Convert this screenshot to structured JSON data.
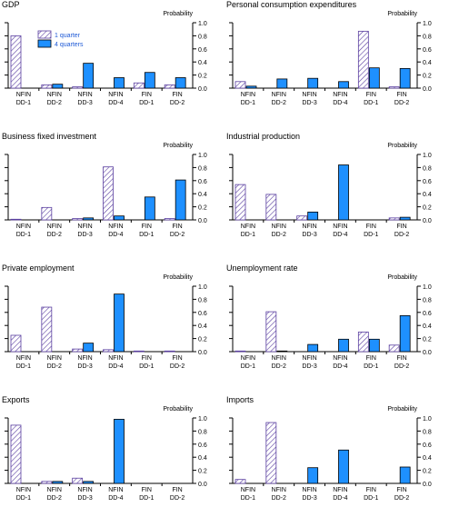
{
  "y_axis_label": "Probability",
  "y_ticks": [
    "0.0",
    "0.2",
    "0.4",
    "0.6",
    "0.8",
    "1.0"
  ],
  "legend": {
    "q1_label": "1 quarter",
    "q4_label": "4 quarters"
  },
  "colors": {
    "q4_fill": "#1e90ff",
    "q1_hatch": "#5a3fa0",
    "axis": "#000000",
    "legend_text": "#1e5ad6"
  },
  "chart_data": [
    {
      "type": "bar",
      "title": "GDP",
      "show_legend": true,
      "categories": [
        [
          "NFIN",
          "DD-1"
        ],
        [
          "NFIN",
          "DD-2"
        ],
        [
          "NFIN",
          "DD-3"
        ],
        [
          "NFIN",
          "DD-4"
        ],
        [
          "FIN",
          "DD-1"
        ],
        [
          "FIN",
          "DD-2"
        ]
      ],
      "series": [
        {
          "name": "1 quarter",
          "values": [
            0.8,
            0.05,
            0.02,
            0.0,
            0.08,
            0.05
          ]
        },
        {
          "name": "4 quarters",
          "values": [
            0.0,
            0.06,
            0.38,
            0.16,
            0.24,
            0.16
          ]
        }
      ],
      "ylim": [
        0,
        1.0
      ]
    },
    {
      "type": "bar",
      "title": "Personal consumption expenditures",
      "show_legend": false,
      "categories": [
        [
          "NFIN",
          "DD-1"
        ],
        [
          "NFIN",
          "DD-2"
        ],
        [
          "NFIN",
          "DD-3"
        ],
        [
          "NFIN",
          "DD-4"
        ],
        [
          "FIN",
          "DD-1"
        ],
        [
          "FIN",
          "DD-2"
        ]
      ],
      "series": [
        {
          "name": "1 quarter",
          "values": [
            0.1,
            0.0,
            0.0,
            0.0,
            0.87,
            0.02
          ]
        },
        {
          "name": "4 quarters",
          "values": [
            0.03,
            0.14,
            0.15,
            0.1,
            0.31,
            0.3
          ]
        }
      ],
      "ylim": [
        0,
        1.0
      ]
    },
    {
      "type": "bar",
      "title": "Business fixed investment",
      "show_legend": false,
      "categories": [
        [
          "NFIN",
          "DD-1"
        ],
        [
          "NFIN",
          "DD-2"
        ],
        [
          "NFIN",
          "DD-3"
        ],
        [
          "NFIN",
          "DD-4"
        ],
        [
          "FIN",
          "DD-1"
        ],
        [
          "FIN",
          "DD-2"
        ]
      ],
      "series": [
        {
          "name": "1 quarter",
          "values": [
            0.01,
            0.19,
            0.02,
            0.81,
            0.0,
            0.02
          ]
        },
        {
          "name": "4 quarters",
          "values": [
            0.0,
            0.0,
            0.03,
            0.06,
            0.35,
            0.61
          ]
        }
      ],
      "ylim": [
        0,
        1.0
      ]
    },
    {
      "type": "bar",
      "title": "Industrial production",
      "show_legend": false,
      "categories": [
        [
          "NFIN",
          "DD-1"
        ],
        [
          "NFIN",
          "DD-2"
        ],
        [
          "NFIN",
          "DD-3"
        ],
        [
          "NFIN",
          "DD-4"
        ],
        [
          "FIN",
          "DD-1"
        ],
        [
          "FIN",
          "DD-2"
        ]
      ],
      "series": [
        {
          "name": "1 quarter",
          "values": [
            0.54,
            0.39,
            0.06,
            0.0,
            0.0,
            0.03
          ]
        },
        {
          "name": "4 quarters",
          "values": [
            0.0,
            0.0,
            0.12,
            0.84,
            0.0,
            0.04
          ]
        }
      ],
      "ylim": [
        0,
        1.0
      ]
    },
    {
      "type": "bar",
      "title": "Private employment",
      "show_legend": false,
      "categories": [
        [
          "NFIN",
          "DD-1"
        ],
        [
          "NFIN",
          "DD-2"
        ],
        [
          "NFIN",
          "DD-3"
        ],
        [
          "NFIN",
          "DD-4"
        ],
        [
          "FIN",
          "DD-1"
        ],
        [
          "FIN",
          "DD-2"
        ]
      ],
      "series": [
        {
          "name": "1 quarter",
          "values": [
            0.25,
            0.68,
            0.04,
            0.03,
            0.01,
            0.01
          ]
        },
        {
          "name": "4 quarters",
          "values": [
            0.0,
            0.0,
            0.13,
            0.88,
            0.0,
            0.0
          ]
        }
      ],
      "ylim": [
        0,
        1.0
      ]
    },
    {
      "type": "bar",
      "title": "Unemployment rate",
      "show_legend": false,
      "categories": [
        [
          "NFIN",
          "DD-1"
        ],
        [
          "NFIN",
          "DD-2"
        ],
        [
          "NFIN",
          "DD-3"
        ],
        [
          "NFIN",
          "DD-4"
        ],
        [
          "FIN",
          "DD-1"
        ],
        [
          "FIN",
          "DD-2"
        ]
      ],
      "series": [
        {
          "name": "1 quarter",
          "values": [
            0.01,
            0.61,
            0.0,
            0.0,
            0.3,
            0.1
          ]
        },
        {
          "name": "4 quarters",
          "values": [
            0.0,
            0.01,
            0.11,
            0.19,
            0.19,
            0.55
          ]
        }
      ],
      "ylim": [
        0,
        1.0
      ]
    },
    {
      "type": "bar",
      "title": "Exports",
      "show_legend": false,
      "categories": [
        [
          "NFIN",
          "DD-1"
        ],
        [
          "NFIN",
          "DD-2"
        ],
        [
          "NFIN",
          "DD-3"
        ],
        [
          "NFIN",
          "DD-4"
        ],
        [
          "FIN",
          "DD-1"
        ],
        [
          "FIN",
          "DD-2"
        ]
      ],
      "series": [
        {
          "name": "1 quarter",
          "values": [
            0.89,
            0.03,
            0.08,
            0.0,
            0.0,
            0.0
          ]
        },
        {
          "name": "4 quarters",
          "values": [
            0.0,
            0.03,
            0.03,
            0.98,
            0.0,
            0.0
          ]
        }
      ],
      "ylim": [
        0,
        1.0
      ]
    },
    {
      "type": "bar",
      "title": "Imports",
      "show_legend": false,
      "categories": [
        [
          "NFIN",
          "DD-1"
        ],
        [
          "NFIN",
          "DD-2"
        ],
        [
          "NFIN",
          "DD-3"
        ],
        [
          "NFIN",
          "DD-4"
        ],
        [
          "FIN",
          "DD-1"
        ],
        [
          "FIN",
          "DD-2"
        ]
      ],
      "series": [
        {
          "name": "1 quarter",
          "values": [
            0.06,
            0.93,
            0.0,
            0.0,
            0.0,
            0.0
          ]
        },
        {
          "name": "4 quarters",
          "values": [
            0.0,
            0.0,
            0.24,
            0.51,
            0.0,
            0.25
          ]
        }
      ],
      "ylim": [
        0,
        1.0
      ]
    }
  ]
}
